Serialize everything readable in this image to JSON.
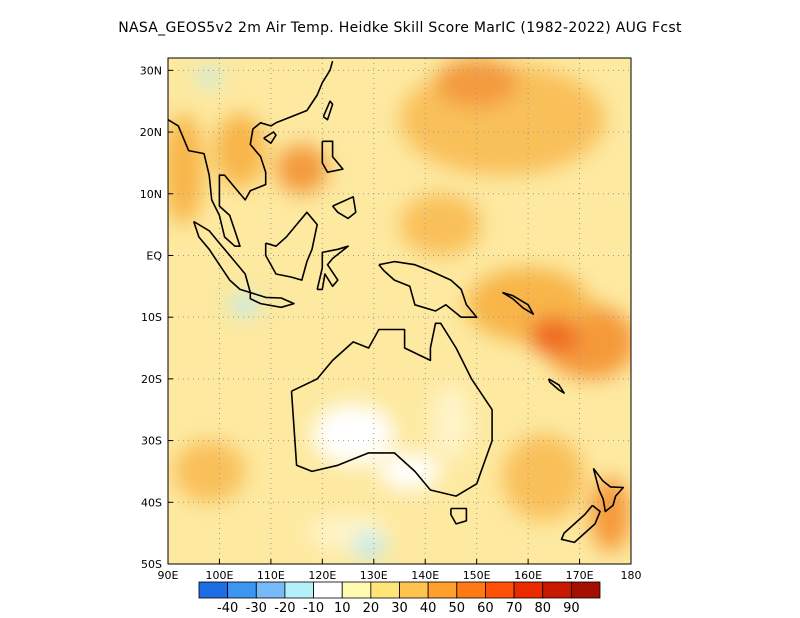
{
  "title": "NASA_GEOS5v2  2m Air Temp. Heidke Skill Score MarIC (1982-2022) AUG Fcst",
  "map": {
    "lon_range": [
      90,
      180
    ],
    "lat_range": [
      -50,
      32
    ],
    "grid": true,
    "lat_ticks": [
      {
        "value": 30,
        "label": "30N"
      },
      {
        "value": 20,
        "label": "20N"
      },
      {
        "value": 10,
        "label": "10N"
      },
      {
        "value": 0,
        "label": "EQ"
      },
      {
        "value": -10,
        "label": "10S"
      },
      {
        "value": -20,
        "label": "20S"
      },
      {
        "value": -30,
        "label": "30S"
      },
      {
        "value": -40,
        "label": "40S"
      },
      {
        "value": -50,
        "label": "50S"
      }
    ],
    "lon_ticks": [
      {
        "value": 90,
        "label": "90E"
      },
      {
        "value": 100,
        "label": "100E"
      },
      {
        "value": 110,
        "label": "110E"
      },
      {
        "value": 120,
        "label": "120E"
      },
      {
        "value": 130,
        "label": "130E"
      },
      {
        "value": 140,
        "label": "140E"
      },
      {
        "value": 150,
        "label": "150E"
      },
      {
        "value": 160,
        "label": "160E"
      },
      {
        "value": 170,
        "label": "170E"
      },
      {
        "value": 180,
        "label": "180"
      }
    ],
    "background_color": "#fde9a0",
    "regions": [
      {
        "name": "central-pacific-high",
        "lon": 172,
        "lat": -14,
        "rlon": 9,
        "rlat": 6,
        "color": "#f59a3a"
      },
      {
        "name": "png-band",
        "lon": 160,
        "lat": -8,
        "rlon": 12,
        "rlat": 6,
        "color": "#f8b54a"
      },
      {
        "name": "png-core",
        "lon": 165,
        "lat": -13,
        "rlon": 5,
        "rlat": 3,
        "color": "#ee6a24"
      },
      {
        "name": "north-pacific",
        "lon": 155,
        "lat": 22,
        "rlon": 20,
        "rlat": 9,
        "color": "#f9c05a"
      },
      {
        "name": "north-pacific-core",
        "lon": 150,
        "lat": 28,
        "rlon": 8,
        "rlat": 4,
        "color": "#f39a3c"
      },
      {
        "name": "south-china-sea",
        "lon": 116,
        "lat": 14,
        "rlon": 5,
        "rlat": 4,
        "color": "#f39a3c"
      },
      {
        "name": "indochina",
        "lon": 104,
        "lat": 17,
        "rlon": 5,
        "rlat": 6,
        "color": "#f8b54a"
      },
      {
        "name": "bay-of-bengal",
        "lon": 93,
        "lat": 14,
        "rlon": 4,
        "rlat": 9,
        "color": "#f8b54a"
      },
      {
        "name": "west-pacific",
        "lon": 143,
        "lat": 5,
        "rlon": 8,
        "rlat": 5,
        "color": "#f9c05a"
      },
      {
        "name": "tasman",
        "lon": 163,
        "lat": -36,
        "rlon": 8,
        "rlat": 7,
        "color": "#f9c05a"
      },
      {
        "name": "nz-east",
        "lon": 176,
        "lat": -42,
        "rlon": 4,
        "rlat": 6,
        "color": "#f59a3a"
      },
      {
        "name": "se-indian",
        "lon": 98,
        "lat": -35,
        "rlon": 7,
        "rlat": 5,
        "color": "#f9c05a"
      },
      {
        "name": "aus-interior",
        "lon": 126,
        "lat": -29,
        "rlon": 8,
        "rlat": 5,
        "color": "#ffffff"
      },
      {
        "name": "aus-south",
        "lon": 137,
        "lat": -35,
        "rlon": 6,
        "rlat": 3,
        "color": "#ffffff"
      },
      {
        "name": "aus-east",
        "lon": 145,
        "lat": -27,
        "rlon": 4,
        "rlat": 6,
        "color": "#fff4c9"
      },
      {
        "name": "south-ocean",
        "lon": 125,
        "lat": -45,
        "rlon": 8,
        "rlat": 3,
        "color": "#fff4c9"
      },
      {
        "name": "java-sea-low",
        "lon": 105,
        "lat": -8,
        "rlon": 3,
        "rlat": 1.5,
        "color": "#b8ecf6"
      },
      {
        "name": "south-blue",
        "lon": 129,
        "lat": -47,
        "rlon": 3,
        "rlat": 2,
        "color": "#b8ecf6"
      },
      {
        "name": "north-blue",
        "lon": 98,
        "lat": 29,
        "rlon": 2,
        "rlat": 1.5,
        "color": "#b8ecf6"
      }
    ],
    "coastlines": [
      {
        "name": "australia-coastline",
        "points": [
          [
            114,
            -22
          ],
          [
            115,
            -34
          ],
          [
            118,
            -35
          ],
          [
            123,
            -34
          ],
          [
            129,
            -32
          ],
          [
            134,
            -32
          ],
          [
            138,
            -35
          ],
          [
            141,
            -38
          ],
          [
            146,
            -39
          ],
          [
            150,
            -37
          ],
          [
            153,
            -30
          ],
          [
            153,
            -25
          ],
          [
            149,
            -20
          ],
          [
            146,
            -15
          ],
          [
            143,
            -11
          ],
          [
            142,
            -11
          ],
          [
            141,
            -15
          ],
          [
            141,
            -17
          ],
          [
            136,
            -15
          ],
          [
            136,
            -12
          ],
          [
            131,
            -12
          ],
          [
            129,
            -15
          ],
          [
            126,
            -14
          ],
          [
            122,
            -17
          ],
          [
            119,
            -20
          ],
          [
            114,
            -22
          ]
        ]
      },
      {
        "name": "tasmania-coastline",
        "points": [
          [
            145,
            -41
          ],
          [
            148,
            -41
          ],
          [
            148,
            -43
          ],
          [
            146,
            -43.5
          ],
          [
            145,
            -42
          ],
          [
            145,
            -41
          ]
        ]
      },
      {
        "name": "new-guinea-coastline",
        "points": [
          [
            131,
            -1.5
          ],
          [
            134,
            -1
          ],
          [
            138,
            -1.5
          ],
          [
            141,
            -2.5
          ],
          [
            145,
            -4
          ],
          [
            147,
            -5.5
          ],
          [
            148,
            -8
          ],
          [
            150,
            -10
          ],
          [
            147,
            -10
          ],
          [
            144,
            -8
          ],
          [
            142,
            -9
          ],
          [
            138,
            -8
          ],
          [
            137,
            -5
          ],
          [
            134,
            -4
          ],
          [
            132,
            -2.5
          ],
          [
            131,
            -1.5
          ]
        ]
      },
      {
        "name": "borneo-coastline",
        "points": [
          [
            109,
            2
          ],
          [
            111,
            1.5
          ],
          [
            113,
            3
          ],
          [
            115,
            5
          ],
          [
            117,
            7
          ],
          [
            119,
            5
          ],
          [
            118,
            1
          ],
          [
            117,
            -1
          ],
          [
            116,
            -4
          ],
          [
            114,
            -3.5
          ],
          [
            111,
            -3
          ],
          [
            110,
            -1.5
          ],
          [
            109,
            0
          ],
          [
            109,
            2
          ]
        ]
      },
      {
        "name": "sumatra-coastline",
        "points": [
          [
            95,
            5.5
          ],
          [
            98,
            4
          ],
          [
            100,
            2
          ],
          [
            103,
            -1
          ],
          [
            105,
            -3
          ],
          [
            106,
            -6
          ],
          [
            104,
            -5.5
          ],
          [
            102,
            -4
          ],
          [
            100,
            -1.5
          ],
          [
            98,
            1
          ],
          [
            96,
            3
          ],
          [
            95,
            5.5
          ]
        ]
      },
      {
        "name": "java-coastline",
        "points": [
          [
            106,
            -6
          ],
          [
            109,
            -6.8
          ],
          [
            112,
            -6.9
          ],
          [
            114.5,
            -7.8
          ],
          [
            112,
            -8.4
          ],
          [
            108,
            -7.8
          ],
          [
            106,
            -7
          ],
          [
            106,
            -6
          ]
        ]
      },
      {
        "name": "sulawesi-coastline",
        "points": [
          [
            119,
            -5.5
          ],
          [
            120,
            -2
          ],
          [
            120,
            0.5
          ],
          [
            123,
            1
          ],
          [
            125,
            1.5
          ],
          [
            122,
            -0.5
          ],
          [
            121,
            -1.5
          ],
          [
            123,
            -4
          ],
          [
            122,
            -5
          ],
          [
            120.5,
            -3
          ],
          [
            120,
            -5.5
          ],
          [
            119,
            -5.5
          ]
        ]
      },
      {
        "name": "philippines-luzon",
        "points": [
          [
            120,
            18.5
          ],
          [
            122,
            18.5
          ],
          [
            122,
            16
          ],
          [
            124,
            14
          ],
          [
            121,
            13.5
          ],
          [
            120,
            15
          ],
          [
            120,
            18.5
          ]
        ]
      },
      {
        "name": "philippines-mindanao",
        "points": [
          [
            122,
            8
          ],
          [
            126,
            9.5
          ],
          [
            126.5,
            7
          ],
          [
            125,
            6
          ],
          [
            123,
            7
          ],
          [
            122,
            8
          ]
        ]
      },
      {
        "name": "asia-mainland",
        "points": [
          [
            90,
            22
          ],
          [
            92,
            21
          ],
          [
            94,
            17
          ],
          [
            97,
            16.5
          ],
          [
            98,
            13
          ],
          [
            98.5,
            9
          ],
          [
            100,
            6.5
          ],
          [
            101,
            3
          ],
          [
            103,
            1.5
          ],
          [
            104,
            1.5
          ],
          [
            103,
            4
          ],
          [
            102,
            6.5
          ],
          [
            100,
            8
          ],
          [
            100,
            13
          ],
          [
            101,
            13
          ],
          [
            103,
            11
          ],
          [
            105,
            9
          ],
          [
            106,
            10.5
          ],
          [
            109,
            11.5
          ],
          [
            109,
            13.5
          ],
          [
            108,
            16
          ],
          [
            106,
            18
          ],
          [
            106.5,
            20.5
          ],
          [
            108,
            21.5
          ],
          [
            110,
            21
          ],
          [
            111,
            21.5
          ],
          [
            114,
            22.5
          ],
          [
            117,
            23.5
          ],
          [
            119,
            26
          ],
          [
            120,
            28
          ],
          [
            121.5,
            30
          ],
          [
            122,
            31.5
          ]
        ]
      },
      {
        "name": "taiwan-coastline",
        "points": [
          [
            120.2,
            22.5
          ],
          [
            121.5,
            25
          ],
          [
            122,
            24.5
          ],
          [
            121,
            22
          ],
          [
            120.2,
            22.5
          ]
        ]
      },
      {
        "name": "hainan-coastline",
        "points": [
          [
            108.6,
            19
          ],
          [
            110.5,
            20
          ],
          [
            111,
            19.5
          ],
          [
            110,
            18.2
          ],
          [
            108.6,
            19
          ]
        ]
      },
      {
        "name": "new-zealand-north",
        "points": [
          [
            172.7,
            -34.5
          ],
          [
            174.5,
            -36.5
          ],
          [
            176,
            -37.5
          ],
          [
            178.5,
            -37.6
          ],
          [
            177,
            -39
          ],
          [
            176.5,
            -40.5
          ],
          [
            175,
            -41.5
          ],
          [
            174.6,
            -39.5
          ],
          [
            173.8,
            -38
          ],
          [
            172.7,
            -34.5
          ]
        ]
      },
      {
        "name": "new-zealand-south",
        "points": [
          [
            172.5,
            -40.5
          ],
          [
            174,
            -41.5
          ],
          [
            173,
            -43.5
          ],
          [
            171,
            -45
          ],
          [
            169,
            -46.5
          ],
          [
            166.5,
            -46
          ],
          [
            167,
            -45
          ],
          [
            169,
            -43.5
          ],
          [
            171,
            -42
          ],
          [
            172.5,
            -40.5
          ]
        ]
      },
      {
        "name": "solomon-islands",
        "points": [
          [
            155,
            -6
          ],
          [
            157,
            -7
          ],
          [
            159,
            -8.5
          ],
          [
            161,
            -9.5
          ],
          [
            160,
            -8
          ],
          [
            157,
            -6.5
          ],
          [
            155,
            -6
          ]
        ]
      },
      {
        "name": "new-caledonia",
        "points": [
          [
            164,
            -20
          ],
          [
            166,
            -21
          ],
          [
            167,
            -22.3
          ],
          [
            166,
            -21.8
          ],
          [
            164.2,
            -20.5
          ],
          [
            164,
            -20
          ]
        ]
      }
    ]
  },
  "colorbar": {
    "colors": [
      "#1e6de5",
      "#3c96f0",
      "#78b9fa",
      "#b4f0fa",
      "#ffffff",
      "#fffab0",
      "#ffe47a",
      "#ffc34f",
      "#ffa02c",
      "#ff7a16",
      "#ff500a",
      "#eb2a00",
      "#c81800",
      "#a40f00"
    ],
    "labels": [
      "-40",
      "-30",
      "-20",
      "-10",
      "10",
      "20",
      "30",
      "40",
      "50",
      "60",
      "70",
      "80",
      "90"
    ]
  }
}
